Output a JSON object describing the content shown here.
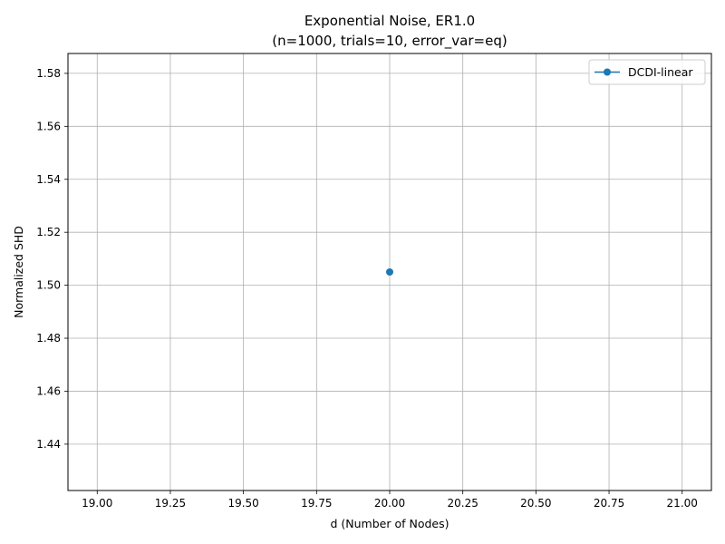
{
  "chart_data": {
    "type": "line",
    "title": "Exponential Noise, ER1.0",
    "subtitle": "(n=1000, trials=10, error_var=eq)",
    "xlabel": "d (Number of Nodes)",
    "ylabel": "Normalized SHD",
    "xlim": [
      18.9,
      21.1
    ],
    "ylim": [
      1.4225,
      1.5875
    ],
    "xticks": [
      "19.00",
      "19.25",
      "19.50",
      "19.75",
      "20.00",
      "20.25",
      "20.50",
      "20.75",
      "21.00"
    ],
    "yticks": [
      "1.44",
      "1.46",
      "1.48",
      "1.50",
      "1.52",
      "1.54",
      "1.56",
      "1.58"
    ],
    "grid": true,
    "legend_position": "top-right",
    "series": [
      {
        "name": "DCDI-linear",
        "color": "#1f77b4",
        "marker": "circle",
        "x": [
          20
        ],
        "y": [
          1.505
        ]
      }
    ]
  }
}
